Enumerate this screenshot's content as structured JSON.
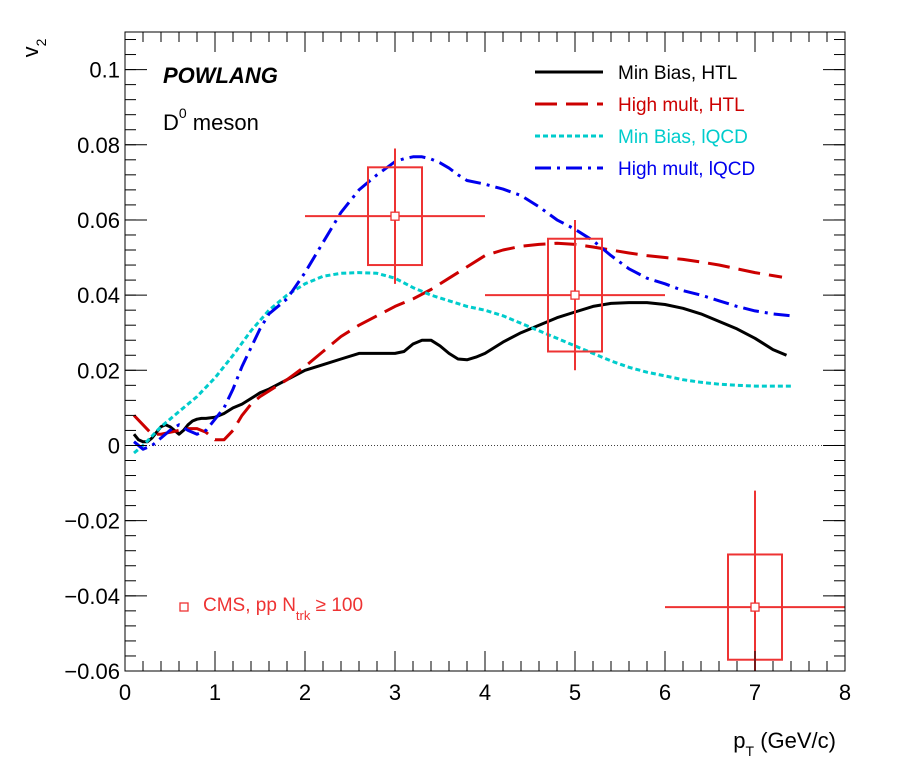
{
  "chart_data": {
    "type": "line",
    "title": "",
    "xlabel": "p",
    "xlabel_sub": "T",
    "xlabel_unit": "(GeV/c)",
    "ylabel": "v",
    "ylabel_sub": "2",
    "xlim": [
      0,
      8
    ],
    "ylim": [
      -0.06,
      0.11
    ],
    "x_ticks": [
      0,
      1,
      2,
      3,
      4,
      5,
      6,
      7,
      8
    ],
    "x_tick_labels": [
      "0",
      "1",
      "2",
      "3",
      "4",
      "5",
      "6",
      "7",
      "8"
    ],
    "y_ticks": [
      -0.06,
      -0.04,
      -0.02,
      0,
      0.02,
      0.04,
      0.06,
      0.08,
      0.1
    ],
    "y_tick_labels": [
      "−0.06",
      "−0.04",
      "−0.02",
      "0",
      "0.02",
      "0.04",
      "0.06",
      "0.08",
      "0.1"
    ],
    "annotations": {
      "model": "POWLANG",
      "particle_main": "D",
      "particle_sup": "0",
      "particle_rest": " meson"
    },
    "series": [
      {
        "name": "Min Bias, HTL",
        "color": "#000000",
        "style": "solid",
        "x": [
          0.1,
          0.15,
          0.2,
          0.25,
          0.3,
          0.35,
          0.4,
          0.45,
          0.5,
          0.55,
          0.6,
          0.65,
          0.7,
          0.75,
          0.8,
          0.85,
          0.9,
          1.0,
          1.1,
          1.2,
          1.3,
          1.4,
          1.5,
          1.6,
          1.8,
          2.0,
          2.2,
          2.4,
          2.6,
          2.8,
          3.0,
          3.1,
          3.2,
          3.3,
          3.4,
          3.5,
          3.6,
          3.7,
          3.8,
          3.9,
          4.0,
          4.2,
          4.4,
          4.6,
          4.8,
          5.0,
          5.2,
          5.4,
          5.6,
          5.8,
          6.0,
          6.2,
          6.4,
          6.6,
          6.8,
          7.0,
          7.2,
          7.35
        ],
        "y": [
          0.003,
          0.0015,
          0.001,
          0.001,
          0.002,
          0.0035,
          0.005,
          0.0055,
          0.005,
          0.004,
          0.003,
          0.004,
          0.0055,
          0.0065,
          0.007,
          0.0072,
          0.0072,
          0.0075,
          0.0085,
          0.01,
          0.011,
          0.0125,
          0.014,
          0.015,
          0.0175,
          0.02,
          0.0215,
          0.023,
          0.0245,
          0.0245,
          0.0245,
          0.025,
          0.027,
          0.028,
          0.028,
          0.0265,
          0.0245,
          0.023,
          0.0228,
          0.0235,
          0.0245,
          0.0275,
          0.03,
          0.032,
          0.034,
          0.0355,
          0.037,
          0.0378,
          0.038,
          0.038,
          0.0375,
          0.0365,
          0.035,
          0.033,
          0.031,
          0.0285,
          0.0255,
          0.024
        ]
      },
      {
        "name": "High mult, HTL",
        "color": "#cc0000",
        "style": "longdash",
        "x": [
          0.1,
          0.2,
          0.3,
          0.4,
          0.5,
          0.6,
          0.7,
          0.8,
          0.9,
          1.0,
          1.1,
          1.2,
          1.3,
          1.4,
          1.5,
          1.6,
          1.8,
          2.0,
          2.2,
          2.4,
          2.6,
          2.8,
          3.0,
          3.2,
          3.4,
          3.6,
          3.8,
          4.0,
          4.2,
          4.4,
          4.6,
          4.8,
          5.0,
          5.2,
          5.4,
          5.6,
          5.8,
          6.0,
          6.2,
          6.4,
          6.6,
          6.8,
          7.0,
          7.2,
          7.3
        ],
        "y": [
          0.008,
          0.0055,
          0.003,
          0.003,
          0.0035,
          0.004,
          0.0045,
          0.0045,
          0.0035,
          0.0015,
          0.0015,
          0.004,
          0.008,
          0.011,
          0.013,
          0.0145,
          0.0175,
          0.021,
          0.025,
          0.029,
          0.032,
          0.0345,
          0.037,
          0.039,
          0.0415,
          0.0445,
          0.0475,
          0.0505,
          0.052,
          0.053,
          0.0535,
          0.0538,
          0.0535,
          0.0528,
          0.052,
          0.0512,
          0.0505,
          0.05,
          0.0495,
          0.0488,
          0.048,
          0.047,
          0.046,
          0.0452,
          0.0448
        ]
      },
      {
        "name": "Min Bias, lQCD",
        "color": "#00cccc",
        "style": "dotted",
        "x": [
          0.1,
          0.2,
          0.3,
          0.4,
          0.5,
          0.6,
          0.8,
          1.0,
          1.2,
          1.4,
          1.6,
          1.8,
          2.0,
          2.2,
          2.4,
          2.6,
          2.8,
          3.0,
          3.2,
          3.4,
          3.6,
          3.8,
          4.0,
          4.2,
          4.4,
          4.6,
          4.8,
          5.0,
          5.2,
          5.4,
          5.6,
          5.8,
          6.0,
          6.2,
          6.4,
          6.6,
          6.8,
          7.0,
          7.2,
          7.4
        ],
        "y": [
          -0.002,
          0.0,
          0.0025,
          0.005,
          0.007,
          0.009,
          0.013,
          0.018,
          0.024,
          0.0305,
          0.036,
          0.04,
          0.043,
          0.045,
          0.0458,
          0.046,
          0.0458,
          0.0445,
          0.042,
          0.04,
          0.0385,
          0.037,
          0.036,
          0.0345,
          0.0325,
          0.0305,
          0.0285,
          0.0265,
          0.0245,
          0.0225,
          0.0208,
          0.0195,
          0.0185,
          0.0175,
          0.0168,
          0.0163,
          0.016,
          0.0158,
          0.0158,
          0.0158
        ]
      },
      {
        "name": "High mult, lQCD",
        "color": "#0000ee",
        "style": "dashdot",
        "x": [
          0.1,
          0.2,
          0.3,
          0.4,
          0.5,
          0.6,
          0.7,
          0.8,
          0.9,
          1.0,
          1.1,
          1.2,
          1.3,
          1.4,
          1.5,
          1.6,
          1.8,
          2.0,
          2.2,
          2.4,
          2.6,
          2.8,
          3.0,
          3.1,
          3.2,
          3.3,
          3.4,
          3.5,
          3.6,
          3.7,
          3.8,
          4.0,
          4.2,
          4.4,
          4.6,
          4.8,
          5.0,
          5.2,
          5.4,
          5.6,
          5.8,
          6.0,
          6.2,
          6.4,
          6.6,
          6.8,
          7.0,
          7.2,
          7.4
        ],
        "y": [
          0.001,
          -0.001,
          0.0,
          0.002,
          0.004,
          0.0055,
          0.004,
          0.003,
          0.004,
          0.007,
          0.01,
          0.015,
          0.021,
          0.026,
          0.031,
          0.035,
          0.039,
          0.046,
          0.054,
          0.062,
          0.068,
          0.072,
          0.0755,
          0.0763,
          0.0768,
          0.0768,
          0.0762,
          0.0752,
          0.0738,
          0.072,
          0.0705,
          0.0695,
          0.0682,
          0.0665,
          0.0635,
          0.06,
          0.0575,
          0.0545,
          0.0505,
          0.047,
          0.0445,
          0.043,
          0.0412,
          0.04,
          0.0385,
          0.037,
          0.0358,
          0.035,
          0.0345
        ]
      }
    ],
    "cms": {
      "legend_prefix": "CMS, pp N",
      "legend_sub": "trk",
      "legend_suffix": " ≥ 100",
      "color": "#ee3333",
      "points": [
        {
          "x": 3.0,
          "y": 0.061,
          "x_err": 1.0,
          "y_stat_low": 0.043,
          "y_stat_high": 0.079,
          "x_sys_low": 2.7,
          "x_sys_high": 3.3,
          "y_sys_low": 0.048,
          "y_sys_high": 0.074
        },
        {
          "x": 5.0,
          "y": 0.04,
          "x_err": 1.0,
          "y_stat_low": 0.02,
          "y_stat_high": 0.06,
          "x_sys_low": 4.7,
          "x_sys_high": 5.3,
          "y_sys_low": 0.025,
          "y_sys_high": 0.055
        },
        {
          "x": 7.0,
          "y": -0.043,
          "x_err": 1.0,
          "y_stat_low": -0.06,
          "y_stat_high": -0.012,
          "x_sys_low": 6.7,
          "x_sys_high": 7.3,
          "y_sys_low": -0.057,
          "y_sys_high": -0.029
        }
      ]
    }
  }
}
